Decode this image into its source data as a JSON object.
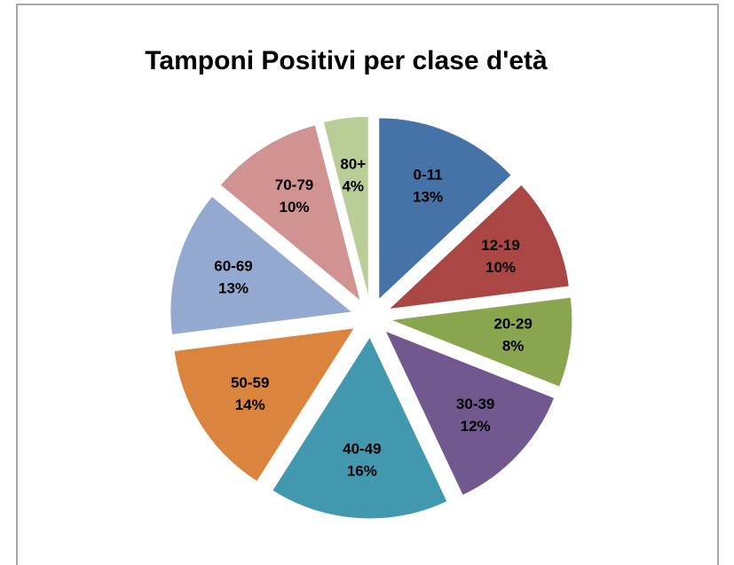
{
  "chart_data": {
    "type": "pie",
    "title": "Tamponi Positivi per clase d'età",
    "categories": [
      "0-11",
      "12-19",
      "20-29",
      "30-39",
      "40-49",
      "50-59",
      "60-69",
      "70-79",
      "80+"
    ],
    "values": [
      13,
      10,
      8,
      12,
      16,
      14,
      13,
      10,
      4
    ],
    "value_labels": [
      "13%",
      "10%",
      "8%",
      "12%",
      "16%",
      "14%",
      "13%",
      "10%",
      "4%"
    ],
    "colors": [
      "#4572a7",
      "#aa4643",
      "#89a54e",
      "#71588f",
      "#4198af",
      "#db843d",
      "#93a9cf",
      "#d19392",
      "#b9cd96"
    ]
  }
}
